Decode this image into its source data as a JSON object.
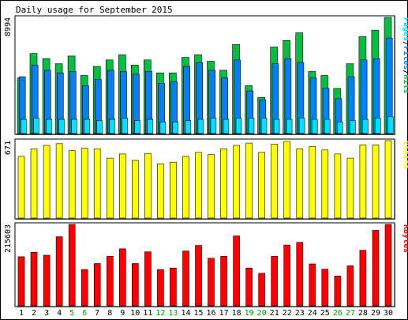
{
  "chart_data": {
    "type": "bar",
    "title": "Daily usage for September 2015",
    "categories": [
      "1",
      "2",
      "3",
      "4",
      "5",
      "6",
      "7",
      "8",
      "9",
      "10",
      "11",
      "12",
      "13",
      "14",
      "15",
      "16",
      "17",
      "18",
      "19",
      "20",
      "21",
      "22",
      "23",
      "24",
      "25",
      "26",
      "27",
      "28",
      "29",
      "30"
    ],
    "weekend_days": [
      "5",
      "6",
      "12",
      "13",
      "19",
      "20",
      "26",
      "27"
    ],
    "colors": {
      "background": "#ffffff",
      "plot_background": "#ffffff",
      "hits": "#00c040",
      "files": "#0080ff",
      "pages": "#00e0ff",
      "visits": "#ffff00",
      "kbytes": "#ff0000",
      "weekday_label": "#000000",
      "weekend_label": "#00a000"
    },
    "panels": [
      {
        "id": "hits-files-pages",
        "ylabel_parts": [
          {
            "text": "Pages",
            "color": "#00e0ff"
          },
          {
            "text": "/",
            "color": "#000000"
          },
          {
            "text": "Files",
            "color": "#0080ff"
          },
          {
            "text": "/",
            "color": "#000000"
          },
          {
            "text": "Hits",
            "color": "#00c040"
          }
        ],
        "max_label": "8994",
        "ylim": [
          0,
          8994
        ],
        "series": [
          {
            "name": "Hits",
            "color": "#00c040",
            "values": [
              4300,
              6200,
              5800,
              5400,
              6000,
              4500,
              5200,
              5700,
              6100,
              5300,
              5700,
              4700,
              4700,
              5900,
              6100,
              5600,
              4900,
              6900,
              3700,
              2800,
              6700,
              7200,
              7800,
              4800,
              4500,
              3500,
              5400,
              7500,
              8000,
              8994
            ]
          },
          {
            "name": "Files",
            "color": "#0080ff",
            "values": [
              4400,
              5300,
              4900,
              4700,
              4800,
              3700,
              4200,
              4900,
              4800,
              4600,
              4800,
              3900,
              4000,
              5200,
              5500,
              4900,
              4300,
              5700,
              3300,
              2600,
              5400,
              5800,
              5500,
              4300,
              3500,
              2700,
              4400,
              5700,
              5800,
              7400
            ]
          },
          {
            "name": "Pages",
            "color": "#00e0ff",
            "values": [
              1100,
              1200,
              1100,
              1100,
              1100,
              1100,
              1000,
              1100,
              1200,
              1000,
              1100,
              900,
              900,
              1000,
              1100,
              1200,
              1100,
              1200,
              1200,
              1200,
              1100,
              1100,
              1200,
              1100,
              1100,
              900,
              1000,
              1100,
              1200,
              1300
            ]
          }
        ]
      },
      {
        "id": "visits",
        "ylabel_parts": [
          {
            "text": "Visits",
            "color": "#ffff00"
          }
        ],
        "max_label": "671",
        "ylim": [
          0,
          671
        ],
        "series": [
          {
            "name": "Visits",
            "color": "#ffff00",
            "values": [
              535,
              600,
              630,
              645,
              585,
              605,
              600,
              520,
              555,
              500,
              560,
              470,
              485,
              535,
              570,
              550,
              600,
              630,
              650,
              570,
              640,
              665,
              600,
              620,
              590,
              555,
              520,
              635,
              635,
              671
            ]
          }
        ]
      },
      {
        "id": "kbytes",
        "ylabel_parts": [
          {
            "text": "KBytes",
            "color": "#ff0000"
          }
        ],
        "max_label": "215603",
        "ylim": [
          0,
          215603
        ],
        "series": [
          {
            "name": "KBytes",
            "color": "#ff0000",
            "values": [
              130000,
              142000,
              134000,
              183000,
              215603,
              96000,
              112000,
              131000,
              151000,
              112000,
              143000,
              96000,
              100000,
              145000,
              160000,
              126000,
              131000,
              185000,
              100000,
              86000,
              131000,
              161000,
              168000,
              111000,
              97000,
              79000,
              106000,
              147000,
              200000,
              215603
            ]
          }
        ]
      }
    ]
  }
}
